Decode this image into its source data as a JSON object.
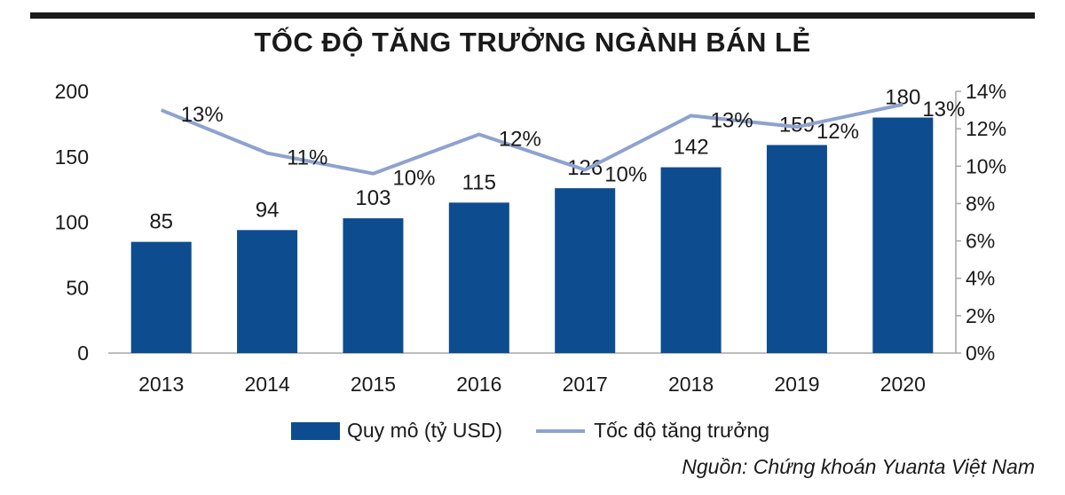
{
  "title": "TỐC ĐỘ TĂNG TRƯỞNG NGÀNH BÁN LẺ",
  "source": "Nguồn: Chứng khoán Yuanta Việt Nam",
  "colors": {
    "bar": "#0d4c8f",
    "line": "#8ea2cf",
    "text": "#1a1a1a",
    "axis": "#a6a6a6"
  },
  "chart_data": {
    "type": "bar",
    "categories": [
      "2013",
      "2014",
      "2015",
      "2016",
      "2017",
      "2018",
      "2019",
      "2020"
    ],
    "series": [
      {
        "name": "Quy mô (tỷ USD)",
        "type": "bar",
        "axis": "left",
        "values": [
          85,
          94,
          103,
          115,
          126,
          142,
          159,
          180
        ]
      },
      {
        "name": "Tốc độ tăng trưởng",
        "type": "line",
        "axis": "right",
        "values": [
          13,
          11,
          10,
          12,
          10,
          13,
          12,
          13
        ],
        "plot_values": [
          13.0,
          10.7,
          9.6,
          11.7,
          9.8,
          12.7,
          12.1,
          13.3
        ]
      }
    ],
    "y_left": {
      "range": [
        0,
        200
      ],
      "ticks": [
        0,
        50,
        100,
        150,
        200
      ]
    },
    "y_right": {
      "range": [
        0,
        14
      ],
      "ticks": [
        "0%",
        "2%",
        "4%",
        "6%",
        "8%",
        "10%",
        "12%",
        "14%"
      ]
    },
    "legend_position": "bottom",
    "grid": false
  }
}
